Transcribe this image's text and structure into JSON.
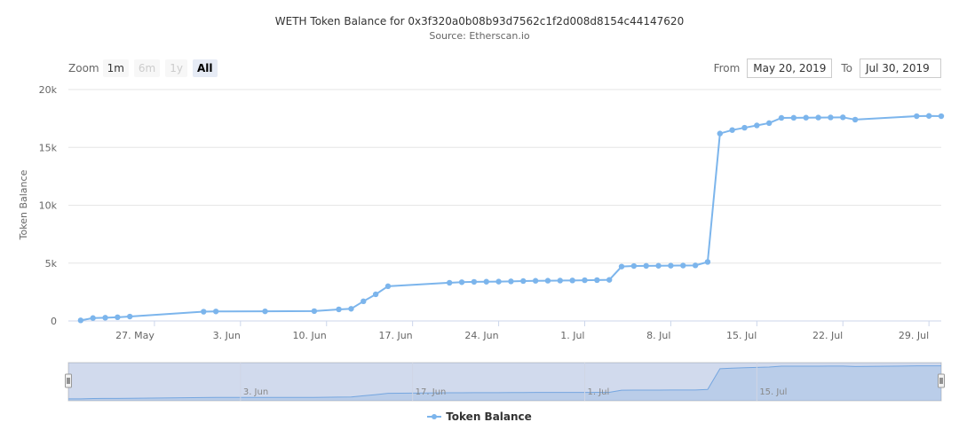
{
  "chart_data": {
    "type": "line",
    "title": "WETH Token Balance for 0x3f320a0b08b93d7562c1f2d008d8154c44147620",
    "subtitle": "Source: Etherscan.io",
    "ylabel": "Token Balance",
    "ylim": [
      0,
      20000
    ],
    "yticks": [
      0,
      5000,
      10000,
      15000,
      20000
    ],
    "ytick_labels": [
      "0",
      "5k",
      "10k",
      "15k",
      "20k"
    ],
    "xlim": [
      "2019-05-20",
      "2019-07-30"
    ],
    "xticks": [
      "2019-05-27",
      "2019-06-03",
      "2019-06-10",
      "2019-06-17",
      "2019-06-24",
      "2019-07-01",
      "2019-07-08",
      "2019-07-15",
      "2019-07-22",
      "2019-07-29"
    ],
    "xtick_labels": [
      "27. May",
      "3. Jun",
      "10. Jun",
      "17. Jun",
      "24. Jun",
      "1. Jul",
      "8. Jul",
      "15. Jul",
      "22. Jul",
      "29. Jul"
    ],
    "navigator_tick_labels": [
      "3. Jun",
      "17. Jun",
      "1. Jul",
      "15. Jul"
    ],
    "navigator_ticks": [
      "2019-06-03",
      "2019-06-17",
      "2019-07-01",
      "2019-07-15"
    ],
    "grid": true,
    "legend_position": "bottom-center",
    "series": [
      {
        "name": "Token Balance",
        "color": "#7cb5ec",
        "x": [
          "2019-05-21",
          "2019-05-22",
          "2019-05-23",
          "2019-05-24",
          "2019-05-25",
          "2019-05-31",
          "2019-06-01",
          "2019-06-05",
          "2019-06-09",
          "2019-06-11",
          "2019-06-12",
          "2019-06-13",
          "2019-06-14",
          "2019-06-15",
          "2019-06-20",
          "2019-06-21",
          "2019-06-22",
          "2019-06-23",
          "2019-06-24",
          "2019-06-25",
          "2019-06-26",
          "2019-06-27",
          "2019-06-28",
          "2019-06-29",
          "2019-06-30",
          "2019-07-01",
          "2019-07-02",
          "2019-07-03",
          "2019-07-04",
          "2019-07-05",
          "2019-07-06",
          "2019-07-07",
          "2019-07-08",
          "2019-07-09",
          "2019-07-10",
          "2019-07-11",
          "2019-07-12",
          "2019-07-13",
          "2019-07-14",
          "2019-07-15",
          "2019-07-16",
          "2019-07-17",
          "2019-07-18",
          "2019-07-19",
          "2019-07-20",
          "2019-07-21",
          "2019-07-22",
          "2019-07-23",
          "2019-07-28",
          "2019-07-29",
          "2019-07-30"
        ],
        "values": [
          50,
          250,
          280,
          320,
          380,
          800,
          820,
          830,
          850,
          1000,
          1050,
          1700,
          2300,
          3000,
          3300,
          3350,
          3380,
          3390,
          3400,
          3420,
          3450,
          3470,
          3480,
          3490,
          3500,
          3520,
          3530,
          3550,
          4700,
          4750,
          4760,
          4770,
          4780,
          4790,
          4800,
          5100,
          16200,
          16500,
          16700,
          16900,
          17100,
          17550,
          17560,
          17570,
          17580,
          17590,
          17600,
          17400,
          17700,
          17720,
          17700
        ]
      }
    ]
  },
  "range_selector": {
    "zoom_label": "Zoom",
    "buttons": [
      "1m",
      "6m",
      "1y",
      "All"
    ],
    "active": "All",
    "disabled": [
      "6m",
      "1y"
    ],
    "from_label": "From",
    "from_value": "May 20, 2019",
    "to_label": "To",
    "to_value": "Jul 30, 2019"
  },
  "legend": {
    "label": "Token Balance"
  }
}
